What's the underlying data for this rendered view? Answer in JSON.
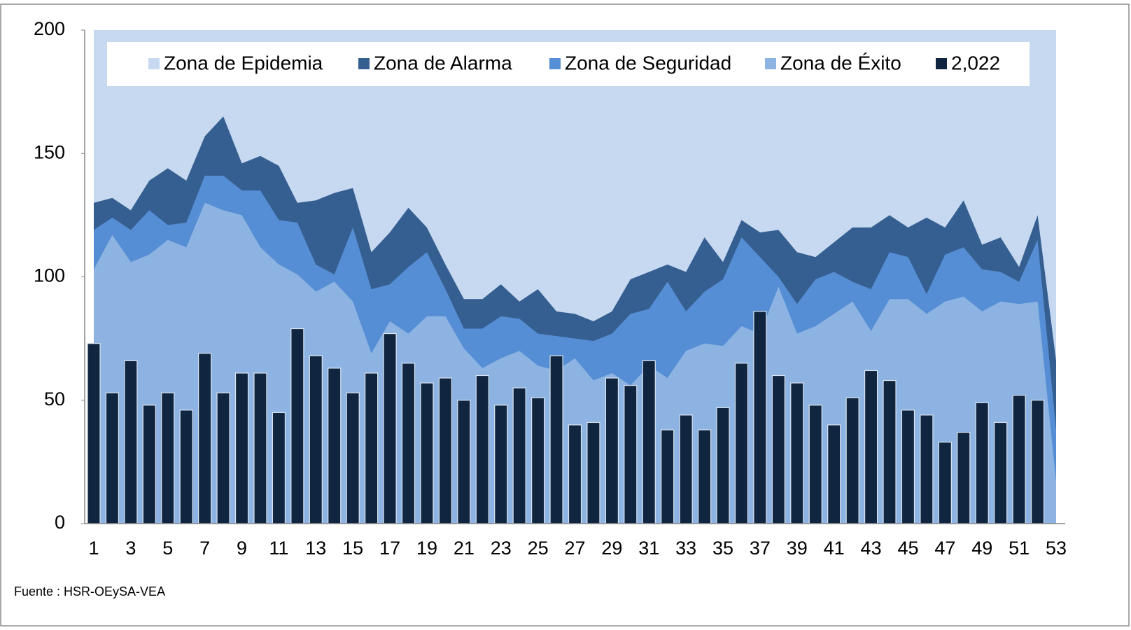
{
  "chart_data": {
    "type": "combo",
    "categories": [
      1,
      null,
      3,
      null,
      5,
      null,
      7,
      null,
      9,
      null,
      11,
      null,
      13,
      null,
      15,
      null,
      17,
      null,
      19,
      null,
      21,
      null,
      23,
      null,
      25,
      null,
      27,
      null,
      29,
      null,
      31,
      null,
      33,
      null,
      35,
      null,
      37,
      null,
      39,
      null,
      41,
      null,
      43,
      null,
      45,
      null,
      47,
      null,
      49,
      null,
      51,
      null,
      53
    ],
    "series": [
      {
        "name": "Zona de Epidemia",
        "type": "area",
        "color": "#c6d9f0",
        "values": [
          200,
          200,
          200,
          200,
          200,
          200,
          200,
          200,
          200,
          200,
          200,
          200,
          200,
          200,
          200,
          200,
          200,
          200,
          200,
          200,
          200,
          200,
          200,
          200,
          200,
          200,
          200,
          200,
          200,
          200,
          200,
          200,
          200,
          200,
          200,
          200,
          200,
          200,
          200,
          200,
          200,
          200,
          200,
          200,
          200,
          200,
          200,
          200,
          200,
          200,
          200,
          200,
          200
        ]
      },
      {
        "name": "Zona de Alarma",
        "type": "area",
        "color": "#365f91",
        "values": [
          130,
          132,
          127,
          139,
          144,
          139,
          157,
          165,
          146,
          149,
          145,
          130,
          131,
          134,
          136,
          110,
          118,
          128,
          120,
          105,
          91,
          91,
          97,
          90,
          95,
          86,
          85,
          82,
          86,
          99,
          102,
          105,
          102,
          116,
          106,
          123,
          118,
          119,
          110,
          108,
          114,
          120,
          120,
          125,
          120,
          124,
          120,
          131,
          113,
          116,
          104,
          125,
          66
        ]
      },
      {
        "name": "Zona de Seguridad",
        "type": "area",
        "color": "#558ed5",
        "values": [
          119,
          124,
          119,
          127,
          121,
          122,
          141,
          141,
          135,
          135,
          123,
          122,
          105,
          101,
          120,
          95,
          97,
          104,
          110,
          95,
          79,
          79,
          84,
          83,
          77,
          76,
          75,
          74,
          77,
          85,
          87,
          98,
          86,
          94,
          99,
          116,
          108,
          100,
          89,
          99,
          102,
          98,
          95,
          110,
          108,
          93,
          109,
          112,
          103,
          102,
          98,
          115,
          38
        ]
      },
      {
        "name": "Zona de Éxito",
        "type": "area",
        "color": "#8db3e2",
        "values": [
          103,
          117,
          106,
          109,
          115,
          112,
          130,
          127,
          125,
          112,
          105,
          101,
          94,
          98,
          90,
          69,
          82,
          77,
          84,
          84,
          71,
          63,
          67,
          70,
          64,
          62,
          67,
          58,
          61,
          56,
          64,
          59,
          70,
          73,
          72,
          80,
          77,
          96,
          77,
          80,
          85,
          90,
          78,
          91,
          91,
          85,
          90,
          92,
          86,
          90,
          89,
          90,
          17
        ]
      },
      {
        "name": "2,022",
        "type": "bar",
        "color": "#10253f",
        "values": [
          73,
          53,
          66,
          48,
          53,
          46,
          69,
          53,
          61,
          61,
          45,
          79,
          68,
          63,
          53,
          61,
          77,
          65,
          57,
          59,
          50,
          60,
          48,
          55,
          51,
          68,
          40,
          41,
          59,
          56,
          66,
          38,
          44,
          38,
          47,
          65,
          86,
          60,
          57,
          48,
          40,
          51,
          62,
          58,
          46,
          44,
          33,
          37,
          49,
          41,
          52,
          50,
          null
        ]
      }
    ],
    "ylim": [
      0,
      200
    ],
    "yticks": [
      0,
      50,
      100,
      150,
      200
    ],
    "grid": false,
    "legend": "top",
    "source": "Fuente : HSR-OEySA-VEA"
  }
}
